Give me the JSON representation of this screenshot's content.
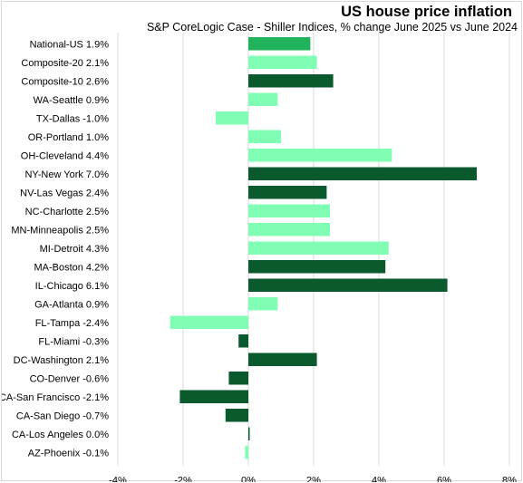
{
  "chart_data": {
    "type": "bar",
    "orientation": "horizontal",
    "title": "US house price inflation",
    "subtitle": "S&P CoreLogic Case - Shiller Indices, % change June 2025 vs June 2024",
    "xlim": [
      -4,
      8
    ],
    "x_ticks": [
      "-4%",
      "-2%",
      "0%",
      "2%",
      "4%",
      "6%",
      "8%"
    ],
    "grid": "vertical",
    "legend": "none",
    "colors": {
      "highlight": "#21b35c",
      "light": "#80ffb4",
      "dark": "#0b5a2d"
    },
    "bars": [
      {
        "label": "National-US 1.9%",
        "value": 1.9,
        "color": "highlight"
      },
      {
        "label": "Composite-20 2.1%",
        "value": 2.1,
        "color": "light"
      },
      {
        "label": "Composite-10 2.6%",
        "value": 2.6,
        "color": "dark"
      },
      {
        "label": "WA-Seattle 0.9%",
        "value": 0.9,
        "color": "light"
      },
      {
        "label": "TX-Dallas -1.0%",
        "value": -1.0,
        "color": "light"
      },
      {
        "label": "OR-Portland 1.0%",
        "value": 1.0,
        "color": "light"
      },
      {
        "label": "OH-Cleveland 4.4%",
        "value": 4.4,
        "color": "light"
      },
      {
        "label": "NY-New York 7.0%",
        "value": 7.0,
        "color": "dark"
      },
      {
        "label": "NV-Las Vegas 2.4%",
        "value": 2.4,
        "color": "dark"
      },
      {
        "label": "NC-Charlotte 2.5%",
        "value": 2.5,
        "color": "light"
      },
      {
        "label": "MN-Minneapolis 2.5%",
        "value": 2.5,
        "color": "light"
      },
      {
        "label": "MI-Detroit 4.3%",
        "value": 4.3,
        "color": "light"
      },
      {
        "label": "MA-Boston 4.2%",
        "value": 4.2,
        "color": "dark"
      },
      {
        "label": "IL-Chicago 6.1%",
        "value": 6.1,
        "color": "dark"
      },
      {
        "label": "GA-Atlanta 0.9%",
        "value": 0.9,
        "color": "light"
      },
      {
        "label": "FL-Tampa -2.4%",
        "value": -2.4,
        "color": "light"
      },
      {
        "label": "FL-Miami -0.3%",
        "value": -0.3,
        "color": "dark"
      },
      {
        "label": "DC-Washington 2.1%",
        "value": 2.1,
        "color": "dark"
      },
      {
        "label": "CO-Denver -0.6%",
        "value": -0.6,
        "color": "dark"
      },
      {
        "label": "CA-San Francisco -2.1%",
        "value": -2.1,
        "color": "dark"
      },
      {
        "label": "CA-San Diego -0.7%",
        "value": -0.7,
        "color": "dark"
      },
      {
        "label": "CA-Los Angeles 0.0%",
        "value": 0.0,
        "color": "dark"
      },
      {
        "label": "AZ-Phoenix -0.1%",
        "value": -0.1,
        "color": "light"
      }
    ]
  }
}
